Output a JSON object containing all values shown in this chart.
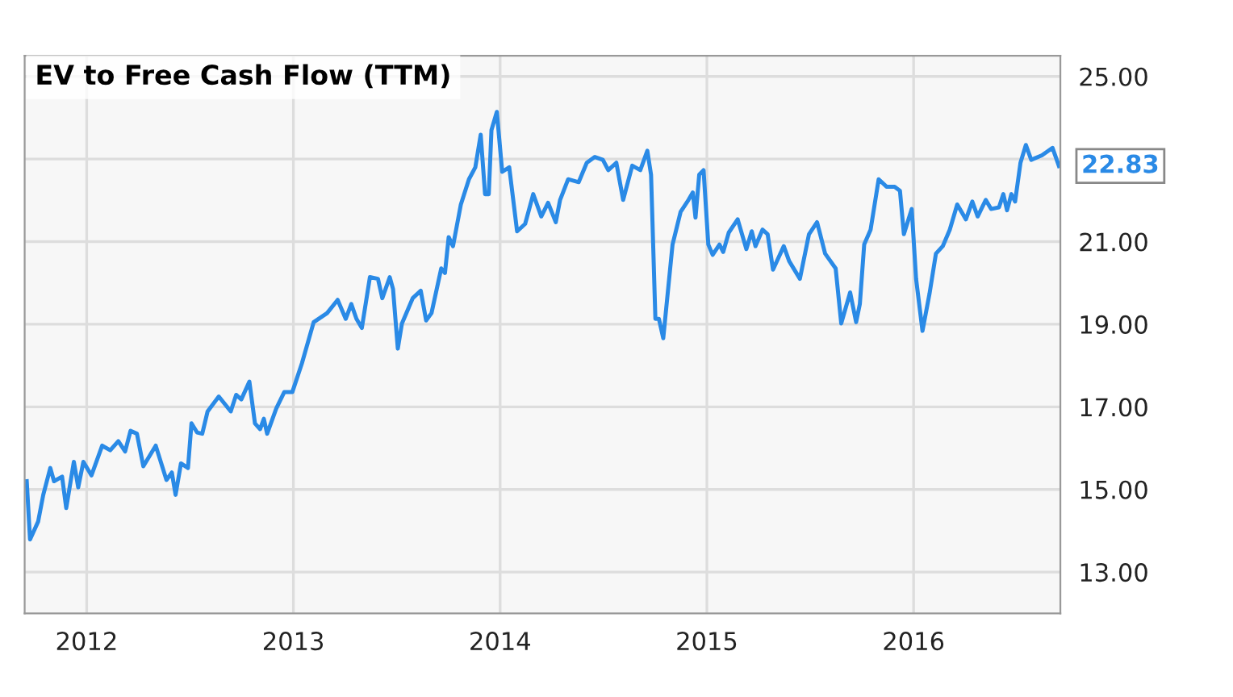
{
  "chart_data": {
    "type": "line",
    "title": "EV to Free Cash Flow (TTM)",
    "series": [
      {
        "color": "#2a8ae6",
        "x": [
          2011.71,
          2011.726,
          2011.765,
          2011.79,
          2011.824,
          2011.842,
          2011.881,
          2011.901,
          2011.938,
          2011.959,
          2011.984,
          2012.023,
          2012.075,
          2012.114,
          2012.153,
          2012.186,
          2012.212,
          2012.243,
          2012.274,
          2012.334,
          2012.386,
          2012.412,
          2012.43,
          2012.456,
          2012.49,
          2012.507,
          2012.534,
          2012.559,
          2012.585,
          2012.639,
          2012.697,
          2012.723,
          2012.748,
          2012.787,
          2012.814,
          2012.839,
          2012.857,
          2012.873,
          2012.917,
          2012.956,
          2012.995,
          2013.041,
          2013.098,
          2013.163,
          2013.214,
          2013.253,
          2013.28,
          2013.305,
          2013.331,
          2013.37,
          2013.409,
          2013.43,
          2013.466,
          2013.482,
          2013.505,
          2013.525,
          2013.577,
          2013.616,
          2013.642,
          2013.668,
          2013.715,
          2013.733,
          2013.751,
          2013.772,
          2013.81,
          2013.849,
          2013.88,
          2013.906,
          2013.927,
          2013.945,
          2013.958,
          2013.984,
          2014.01,
          2014.044,
          2014.082,
          2014.121,
          2014.16,
          2014.199,
          2014.232,
          2014.269,
          2014.29,
          2014.329,
          2014.38,
          2014.419,
          2014.458,
          2014.497,
          2014.523,
          2014.562,
          2014.595,
          2014.639,
          2014.678,
          2014.712,
          2014.73,
          2014.751,
          2014.768,
          2014.789,
          2014.834,
          2014.873,
          2014.911,
          2014.932,
          2014.945,
          2014.963,
          2014.984,
          2015.007,
          2015.028,
          2015.061,
          2015.079,
          2015.106,
          2015.149,
          2015.191,
          2015.217,
          2015.235,
          2015.269,
          2015.294,
          2015.32,
          2015.372,
          2015.398,
          2015.45,
          2015.494,
          2015.533,
          2015.572,
          2015.623,
          2015.65,
          2015.693,
          2015.722,
          2015.74,
          2015.761,
          2015.792,
          2015.831,
          2015.869,
          2015.908,
          2015.934,
          2015.953,
          2015.991,
          2016.012,
          2016.043,
          2016.077,
          2016.108,
          2016.141,
          2016.175,
          2016.211,
          2016.253,
          2016.284,
          2016.31,
          2016.349,
          2016.375,
          2016.413,
          2016.434,
          2016.452,
          2016.473,
          2016.491,
          2016.517,
          2016.543,
          2016.569,
          2016.621,
          2016.672,
          2016.703
        ],
        "values": [
          15.2,
          13.79,
          14.22,
          14.87,
          15.52,
          15.2,
          15.31,
          14.55,
          15.67,
          15.05,
          15.67,
          15.34,
          16.06,
          15.95,
          16.17,
          15.92,
          16.42,
          16.35,
          15.56,
          16.06,
          15.23,
          15.41,
          14.87,
          15.63,
          15.52,
          16.6,
          16.38,
          16.35,
          16.89,
          17.25,
          16.89,
          17.29,
          17.18,
          17.61,
          16.6,
          16.46,
          16.71,
          16.35,
          16.96,
          17.36,
          17.36,
          18.05,
          19.05,
          19.27,
          19.59,
          19.13,
          19.49,
          19.13,
          18.91,
          20.14,
          20.1,
          19.63,
          20.14,
          19.85,
          18.41,
          19.02,
          19.63,
          19.81,
          19.09,
          19.27,
          20.35,
          20.24,
          21.11,
          20.89,
          21.9,
          22.51,
          22.8,
          23.59,
          22.15,
          22.15,
          23.7,
          24.14,
          22.69,
          22.8,
          21.25,
          21.43,
          22.15,
          21.61,
          21.94,
          21.47,
          22.01,
          22.51,
          22.44,
          22.91,
          23.05,
          22.98,
          22.73,
          22.91,
          22.01,
          22.84,
          22.73,
          23.2,
          22.62,
          19.13,
          19.13,
          18.66,
          20.93,
          21.72,
          22.01,
          22.19,
          21.58,
          22.62,
          22.73,
          20.93,
          20.68,
          20.93,
          20.75,
          21.22,
          21.54,
          20.82,
          21.25,
          20.89,
          21.29,
          21.18,
          20.32,
          20.89,
          20.53,
          20.1,
          21.18,
          21.47,
          20.71,
          20.35,
          19.02,
          19.77,
          19.05,
          19.49,
          20.93,
          21.29,
          22.51,
          22.33,
          22.33,
          22.23,
          21.18,
          21.79,
          20.1,
          18.84,
          19.74,
          20.71,
          20.89,
          21.29,
          21.9,
          21.54,
          21.97,
          21.61,
          22.01,
          21.79,
          21.83,
          22.15,
          21.76,
          22.15,
          21.97,
          22.91,
          23.34,
          22.98,
          23.09,
          23.27,
          22.83
        ]
      }
    ],
    "xlim": [
      2011.7,
      2016.71
    ],
    "xticks": [
      2012,
      2013,
      2014,
      2015,
      2016
    ],
    "ylim": [
      12,
      25.5
    ],
    "yticks": [
      {
        "value": 13,
        "label": "13.00"
      },
      {
        "value": 15,
        "label": "15.00"
      },
      {
        "value": 17,
        "label": "17.00"
      },
      {
        "value": 19,
        "label": "19.00"
      },
      {
        "value": 21,
        "label": "21.00"
      },
      {
        "value": 23,
        "label": null
      },
      {
        "value": 25,
        "label": "25.00"
      }
    ],
    "grid": true,
    "annotations": [
      {
        "text": "22.83",
        "x": 2016.703,
        "y": 22.83
      }
    ]
  }
}
